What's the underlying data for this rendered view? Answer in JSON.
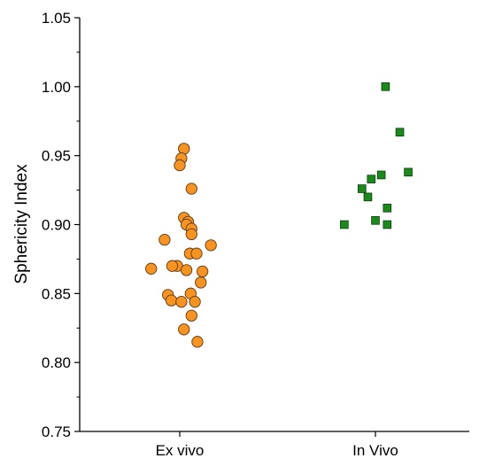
{
  "chart_data": {
    "type": "scatter",
    "title": "",
    "xlabel": "",
    "ylabel": "Sphericity Index",
    "categories": [
      "Ex vivo",
      "In Vivo"
    ],
    "ylim": [
      0.75,
      1.05
    ],
    "yticks": [
      "0.75",
      "0.80",
      "0.85",
      "0.90",
      "0.95",
      "1.00",
      "1.05"
    ],
    "grid": false,
    "series": [
      {
        "category": "Ex vivo",
        "marker": "circle",
        "color": "#f7931e",
        "edge_color": "#5a3a1a",
        "points": [
          {
            "x_jitter": 0.05,
            "y": 0.955
          },
          {
            "x_jitter": 0.02,
            "y": 0.948
          },
          {
            "x_jitter": 0.0,
            "y": 0.943
          },
          {
            "x_jitter": 0.14,
            "y": 0.926
          },
          {
            "x_jitter": 0.05,
            "y": 0.905
          },
          {
            "x_jitter": 0.1,
            "y": 0.902
          },
          {
            "x_jitter": 0.08,
            "y": 0.9
          },
          {
            "x_jitter": 0.14,
            "y": 0.897
          },
          {
            "x_jitter": 0.14,
            "y": 0.893
          },
          {
            "x_jitter": -0.18,
            "y": 0.889
          },
          {
            "x_jitter": 0.37,
            "y": 0.885
          },
          {
            "x_jitter": 0.12,
            "y": 0.879
          },
          {
            "x_jitter": 0.2,
            "y": 0.879
          },
          {
            "x_jitter": -0.03,
            "y": 0.87
          },
          {
            "x_jitter": -0.09,
            "y": 0.87
          },
          {
            "x_jitter": -0.34,
            "y": 0.868
          },
          {
            "x_jitter": 0.08,
            "y": 0.867
          },
          {
            "x_jitter": 0.27,
            "y": 0.866
          },
          {
            "x_jitter": 0.25,
            "y": 0.858
          },
          {
            "x_jitter": 0.13,
            "y": 0.85
          },
          {
            "x_jitter": -0.14,
            "y": 0.849
          },
          {
            "x_jitter": -0.1,
            "y": 0.845
          },
          {
            "x_jitter": 0.02,
            "y": 0.844
          },
          {
            "x_jitter": 0.18,
            "y": 0.844
          },
          {
            "x_jitter": 0.14,
            "y": 0.834
          },
          {
            "x_jitter": 0.05,
            "y": 0.824
          },
          {
            "x_jitter": 0.21,
            "y": 0.815
          }
        ]
      },
      {
        "category": "In Vivo",
        "marker": "square",
        "color": "#1a8a1a",
        "edge_color": "#0d3d0d",
        "points": [
          {
            "x_jitter": 0.12,
            "y": 1.0
          },
          {
            "x_jitter": 0.29,
            "y": 0.967
          },
          {
            "x_jitter": 0.39,
            "y": 0.938
          },
          {
            "x_jitter": 0.07,
            "y": 0.936
          },
          {
            "x_jitter": -0.05,
            "y": 0.933
          },
          {
            "x_jitter": -0.16,
            "y": 0.926
          },
          {
            "x_jitter": -0.09,
            "y": 0.92
          },
          {
            "x_jitter": 0.14,
            "y": 0.912
          },
          {
            "x_jitter": 0.0,
            "y": 0.903
          },
          {
            "x_jitter": -0.37,
            "y": 0.9
          },
          {
            "x_jitter": 0.14,
            "y": 0.9
          }
        ]
      }
    ]
  }
}
